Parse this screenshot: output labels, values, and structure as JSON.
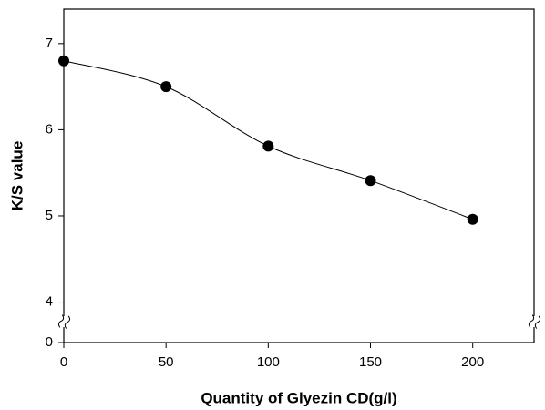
{
  "chart_data": {
    "type": "line",
    "x_label": "Quantity of Glyezin CD(g/l)",
    "y_label": "K/S value",
    "x": [
      0,
      50,
      100,
      150,
      200
    ],
    "series": [
      {
        "name": "K/S",
        "color": "#000000",
        "values": [
          6.8,
          6.5,
          5.81,
          5.41,
          4.96
        ]
      }
    ],
    "xlim": [
      0,
      230
    ],
    "xticks": [
      0,
      50,
      100,
      150,
      200
    ],
    "ylim": [
      3.53,
      7.4
    ],
    "yticks": [
      0,
      4,
      5,
      6,
      7
    ],
    "y_axis_break": true,
    "smooth": true,
    "markers": true
  }
}
